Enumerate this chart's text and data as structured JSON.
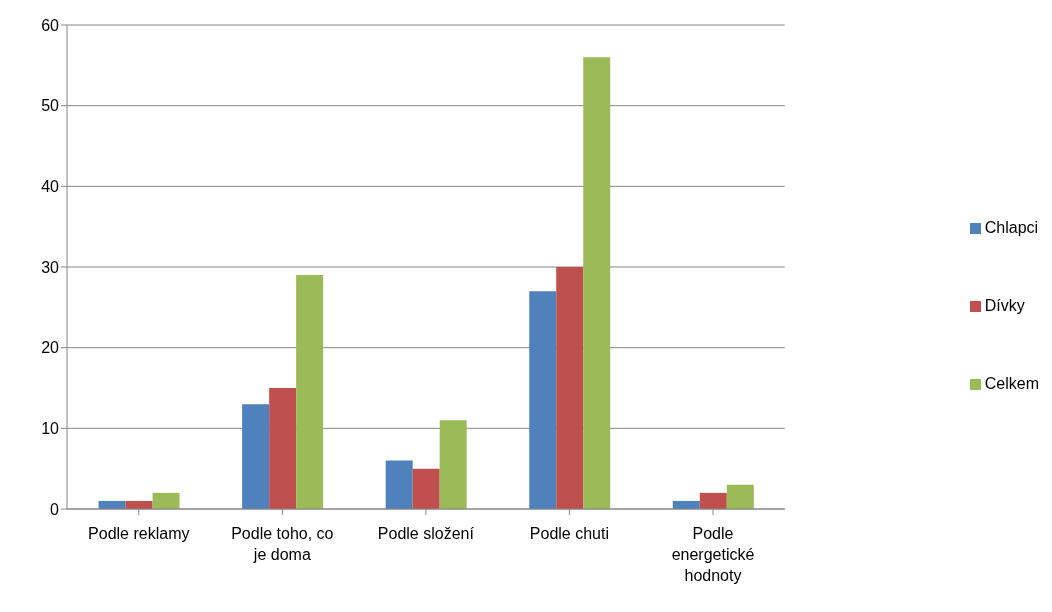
{
  "chart_data": {
    "type": "bar",
    "categories": [
      "Podle reklamy",
      "Podle toho, co je doma",
      "Podle složení",
      "Podle chuti",
      "Podle energetické hodnoty"
    ],
    "series": [
      {
        "name": "Chlapci",
        "color": "#4f81bd",
        "values": [
          1,
          13,
          6,
          27,
          1
        ]
      },
      {
        "name": "Dívky",
        "color": "#c0504d",
        "values": [
          1,
          15,
          5,
          30,
          2
        ]
      },
      {
        "name": "Celkem",
        "color": "#9bbb59",
        "values": [
          2,
          29,
          11,
          56,
          3
        ]
      }
    ],
    "ylim": [
      0,
      60
    ],
    "yticks": [
      0,
      10,
      20,
      30,
      40,
      50,
      60
    ],
    "grid": "y",
    "legend": "right"
  }
}
